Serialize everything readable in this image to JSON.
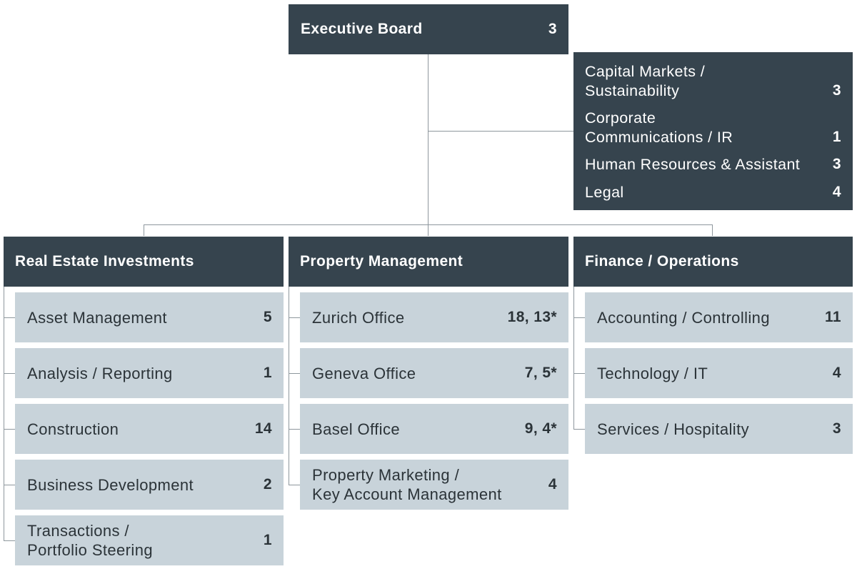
{
  "executive": {
    "title": "Executive Board",
    "count": "3"
  },
  "staff": [
    {
      "label": "Capital Markets /\nSustainability",
      "count": "3"
    },
    {
      "label": "Corporate\nCommunications / IR",
      "count": "1"
    },
    {
      "label": "Human Resources & Assistant",
      "count": "3"
    },
    {
      "label": "Legal",
      "count": "4"
    }
  ],
  "departments": [
    {
      "title": "Real Estate Investments",
      "units": [
        {
          "label": "Asset Management",
          "count": "5"
        },
        {
          "label": "Analysis / Reporting",
          "count": "1"
        },
        {
          "label": "Construction",
          "count": "14"
        },
        {
          "label": "Business Development",
          "count": "2"
        },
        {
          "label": "Transactions /\nPortfolio Steering",
          "count": "1"
        }
      ]
    },
    {
      "title": "Property Management",
      "units": [
        {
          "label": "Zurich Office",
          "count": "18, 13*"
        },
        {
          "label": "Geneva Office",
          "count": "7, 5*"
        },
        {
          "label": "Basel Office",
          "count": "9, 4*"
        },
        {
          "label": "Property Marketing /\nKey Account Management",
          "count": "4"
        }
      ]
    },
    {
      "title": "Finance / Operations",
      "units": [
        {
          "label": "Accounting / Controlling",
          "count": "11"
        },
        {
          "label": "Technology / IT",
          "count": "4"
        },
        {
          "label": "Services / Hospitality",
          "count": "3"
        }
      ]
    }
  ],
  "colors": {
    "dark_box": "#36444e",
    "light_box": "#c8d3da",
    "connector": "#8e979d"
  }
}
